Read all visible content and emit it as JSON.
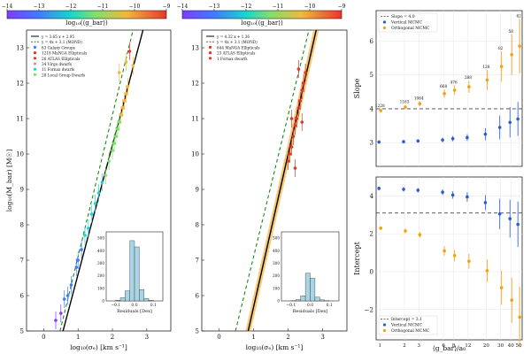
{
  "colors": {
    "observed_points": "#d93a2b",
    "tf_fit_line": "#000000",
    "mond_line": "#1a8a1a",
    "vertical_mcmc": "#2a5bd7",
    "orthogonal_mcmc": "#f2a10f",
    "histogram_bar": "#a9d4e4",
    "reference_dashed": "#444444"
  },
  "colorbars": [
    {
      "label": "log₁₀(⟨g_bar⟩)",
      "ticks": [
        "−14",
        "−13",
        "−12",
        "−11",
        "−10",
        "−9"
      ],
      "colormap": "rainbow"
    },
    {
      "label": "log₁₀(⟨g_bar⟩)",
      "ticks": [
        "−14",
        "−13",
        "−12",
        "−11",
        "−10",
        "−9"
      ],
      "colormap": "rainbow"
    }
  ],
  "chart_data": [
    {
      "type": "scatter",
      "xlabel": "log₁₀(σₑ) [km s⁻¹]",
      "ylabel": "log₁₀(M_bar) [M☉]",
      "xlim": [
        -0.5,
        3.7
      ],
      "ylim": [
        5,
        13.5
      ],
      "xticks": [
        "0",
        "1",
        "2",
        "3"
      ],
      "yticks": [
        "5",
        "6",
        "7",
        "8",
        "9",
        "10",
        "11",
        "12",
        "13"
      ],
      "lines": [
        {
          "name": "y = 3.65 x + 2.95",
          "slope": 3.65,
          "intercept": 2.95,
          "style": "solid"
        },
        {
          "name": "y = 4x + 3.1 (MOND)",
          "slope": 4,
          "intercept": 3.1,
          "style": "dashed"
        }
      ],
      "legend": {
        "position": "top-left",
        "entries": [
          "y = 3.65 x + 2.95",
          "y = 4x + 3.1 (MOND)",
          "63 Galaxy Groups",
          "1218 MaNGA Ellipticals",
          "26 ATLAS Ellipticals",
          "34 Virgo dwarfs",
          "11 Fornax dwarfs",
          "28 Local Group Dwarfs"
        ]
      },
      "points": [
        [
          0.35,
          5.3
        ],
        [
          0.5,
          5.5
        ],
        [
          0.6,
          5.9
        ],
        [
          0.7,
          6.0
        ],
        [
          0.8,
          6.3
        ],
        [
          0.95,
          6.8
        ],
        [
          1.0,
          7.0
        ],
        [
          1.1,
          7.3
        ],
        [
          1.2,
          7.7
        ],
        [
          1.3,
          7.9
        ],
        [
          1.4,
          8.3
        ],
        [
          1.5,
          8.6
        ],
        [
          1.6,
          8.9
        ],
        [
          1.7,
          9.2
        ],
        [
          1.8,
          9.4
        ],
        [
          1.9,
          9.8
        ],
        [
          2.0,
          10.1
        ],
        [
          2.05,
          10.3
        ],
        [
          2.1,
          10.5
        ],
        [
          2.15,
          10.7
        ],
        [
          2.2,
          10.9
        ],
        [
          2.25,
          11.1
        ],
        [
          2.3,
          11.3
        ],
        [
          2.35,
          11.5
        ],
        [
          2.4,
          11.7
        ],
        [
          2.45,
          11.9
        ],
        [
          2.2,
          12.3
        ],
        [
          2.4,
          12.6
        ],
        [
          2.5,
          12.9
        ],
        [
          2.6,
          12.5
        ]
      ],
      "inset": {
        "type": "bar",
        "xlabel": "Residuals [Dex]",
        "xticks": [
          "−0.1",
          "0.0",
          "0.1"
        ],
        "yticks": [
          "0",
          "100",
          "200",
          "300",
          "400",
          "500"
        ],
        "bins": [
          -0.1,
          -0.075,
          -0.05,
          -0.025,
          0.0,
          0.025,
          0.05,
          0.075,
          0.1
        ],
        "values": [
          5,
          25,
          80,
          480,
          430,
          90,
          20,
          5
        ]
      }
    },
    {
      "type": "scatter",
      "xlabel": "log₁₀(σₑ) [km s⁻¹]",
      "ylabel": "",
      "xlim": [
        -0.5,
        3.7
      ],
      "ylim": [
        5,
        13.5
      ],
      "xticks": [
        "0",
        "1",
        "2",
        "3"
      ],
      "yticks": [
        "5",
        "6",
        "7",
        "8",
        "9",
        "10",
        "11",
        "12",
        "13"
      ],
      "lines": [
        {
          "name": "y = 4.32 x + 1.36",
          "slope": 4.32,
          "intercept": 1.36,
          "style": "solid"
        },
        {
          "name": "y = 4x + 3.1 (MOND)",
          "slope": 4,
          "intercept": 3.1,
          "style": "dashed"
        }
      ],
      "legend": {
        "position": "top-left",
        "entries": [
          "y = 4.32 x + 1.36",
          "y = 4x + 3.1 (MOND)",
          "644 MaNGA Ellipticals",
          "23 ATLAS Ellipticals",
          "1 Fornax dwarfs"
        ]
      },
      "points": [
        [
          2.0,
          9.8
        ],
        [
          2.05,
          10.0
        ],
        [
          2.1,
          10.2
        ],
        [
          2.15,
          10.5
        ],
        [
          2.2,
          10.8
        ],
        [
          2.25,
          11.0
        ],
        [
          2.3,
          11.3
        ],
        [
          2.35,
          11.5
        ],
        [
          2.4,
          11.8
        ],
        [
          2.45,
          12.0
        ],
        [
          2.5,
          12.3
        ],
        [
          2.2,
          9.6
        ],
        [
          2.3,
          12.4
        ],
        [
          2.1,
          11.0
        ],
        [
          2.4,
          10.9
        ]
      ],
      "inset": {
        "type": "bar",
        "xlabel": "Residuals [Dex]",
        "xticks": [
          "−0.1",
          "0.0",
          "0.1"
        ],
        "yticks": [
          "0",
          "100",
          "200",
          "300",
          "400",
          "500"
        ],
        "bins": [
          -0.1,
          -0.075,
          -0.05,
          -0.025,
          0.0,
          0.025,
          0.05,
          0.075,
          0.1
        ],
        "values": [
          2,
          10,
          40,
          220,
          180,
          30,
          8,
          2
        ]
      }
    },
    {
      "type": "scatter",
      "xlabel": "",
      "ylabel": "Slope",
      "xscale": "log",
      "xlim": [
        0.9,
        55
      ],
      "ylim": [
        2.3,
        6.9
      ],
      "yticks": [
        "3",
        "4",
        "5",
        "6"
      ],
      "reference": {
        "name": "Slope = 4.0",
        "value": 4.0
      },
      "legend": {
        "position": "top-left",
        "entries": [
          "Slope = 4.0",
          "Vertical MCMC",
          "Orthogonal MCMC"
        ]
      },
      "x": [
        1,
        2,
        3,
        6,
        8,
        12,
        20,
        30,
        40,
        50
      ],
      "series": [
        {
          "name": "Vertical MCMC",
          "values": [
            3.02,
            3.03,
            3.05,
            3.08,
            3.12,
            3.15,
            3.25,
            3.45,
            3.6,
            3.7
          ],
          "errors": [
            0.05,
            0.05,
            0.05,
            0.07,
            0.08,
            0.1,
            0.18,
            0.35,
            0.45,
            0.5
          ]
        },
        {
          "name": "Orthogonal MCMC",
          "values": [
            3.95,
            4.05,
            4.15,
            4.45,
            4.55,
            4.65,
            4.85,
            5.25,
            5.6,
            5.85
          ],
          "errors": [
            0.05,
            0.06,
            0.07,
            0.12,
            0.14,
            0.18,
            0.3,
            0.45,
            0.6,
            0.8
          ]
        }
      ],
      "annotations": [
        "1228",
        "1163",
        "1064",
        "668",
        "476",
        "288",
        "128",
        "82",
        "58",
        "62"
      ]
    },
    {
      "type": "scatter",
      "xlabel": "⟨g_bar⟩/a₀",
      "ylabel": "Intercept",
      "xscale": "log",
      "xlim": [
        0.9,
        55
      ],
      "ylim": [
        -3.6,
        5.0
      ],
      "xticks": [
        "1",
        "2",
        "3",
        "6",
        "8",
        "12",
        "20",
        "30",
        "40",
        "50"
      ],
      "yticks": [
        "−2",
        "0",
        "2",
        "4"
      ],
      "reference": {
        "name": "Intercept = 3.1",
        "value": 3.1
      },
      "legend": {
        "position": "bottom-left",
        "entries": [
          "Intercept = 3.1",
          "Vertical MCMC",
          "Orthogonal MCMC"
        ]
      },
      "x": [
        1,
        2,
        3,
        6,
        8,
        12,
        20,
        30,
        40,
        50
      ],
      "series": [
        {
          "name": "Vertical MCMC",
          "values": [
            4.4,
            4.35,
            4.3,
            4.2,
            4.05,
            3.95,
            3.65,
            3.05,
            2.8,
            2.5
          ],
          "errors": [
            0.1,
            0.12,
            0.12,
            0.15,
            0.2,
            0.25,
            0.4,
            0.8,
            1.0,
            1.2
          ]
        },
        {
          "name": "Orthogonal MCMC",
          "values": [
            2.3,
            2.15,
            1.95,
            1.1,
            0.85,
            0.55,
            0.05,
            -0.85,
            -1.5,
            -2.4
          ],
          "errors": [
            0.1,
            0.12,
            0.15,
            0.25,
            0.3,
            0.4,
            0.6,
            0.9,
            1.2,
            1.6
          ]
        }
      ]
    }
  ]
}
